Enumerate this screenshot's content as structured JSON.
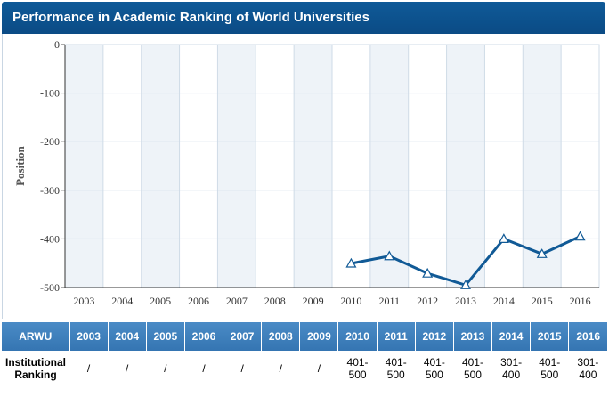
{
  "header": {
    "title": "Performance in Academic Ranking of World Universities"
  },
  "chart_data": {
    "type": "line",
    "ylabel": "Position",
    "categories": [
      "2003",
      "2004",
      "2005",
      "2006",
      "2007",
      "2008",
      "2009",
      "2010",
      "2011",
      "2012",
      "2013",
      "2014",
      "2015",
      "2016"
    ],
    "y_ticks": [
      "0",
      "-100",
      "-200",
      "-300",
      "-400",
      "-500"
    ],
    "ylim": [
      -500,
      0
    ],
    "series": [
      {
        "values": [
          null,
          null,
          null,
          null,
          null,
          null,
          null,
          -450.5,
          -435.5,
          -471,
          -495,
          -400,
          -431,
          -395
        ],
        "color": "#115a96"
      }
    ],
    "grid": true,
    "plot_bg_color": "#eef3f8",
    "grid_color": "#cfdbe7"
  },
  "table": {
    "header_label": "ARWU",
    "years": [
      "2003",
      "2004",
      "2005",
      "2006",
      "2007",
      "2008",
      "2009",
      "2010",
      "2011",
      "2012",
      "2013",
      "2014",
      "2015",
      "2016"
    ],
    "row_label_line1": "Institutional",
    "row_label_line2": "Ranking",
    "values": [
      [
        "/"
      ],
      [
        "/"
      ],
      [
        "/"
      ],
      [
        "/"
      ],
      [
        "/"
      ],
      [
        "/"
      ],
      [
        "/"
      ],
      [
        "401-",
        "500"
      ],
      [
        "401-",
        "500"
      ],
      [
        "401-",
        "500"
      ],
      [
        "401-",
        "500"
      ],
      [
        "301-",
        "400"
      ],
      [
        "401-",
        "500"
      ],
      [
        "301-",
        "400"
      ]
    ]
  }
}
